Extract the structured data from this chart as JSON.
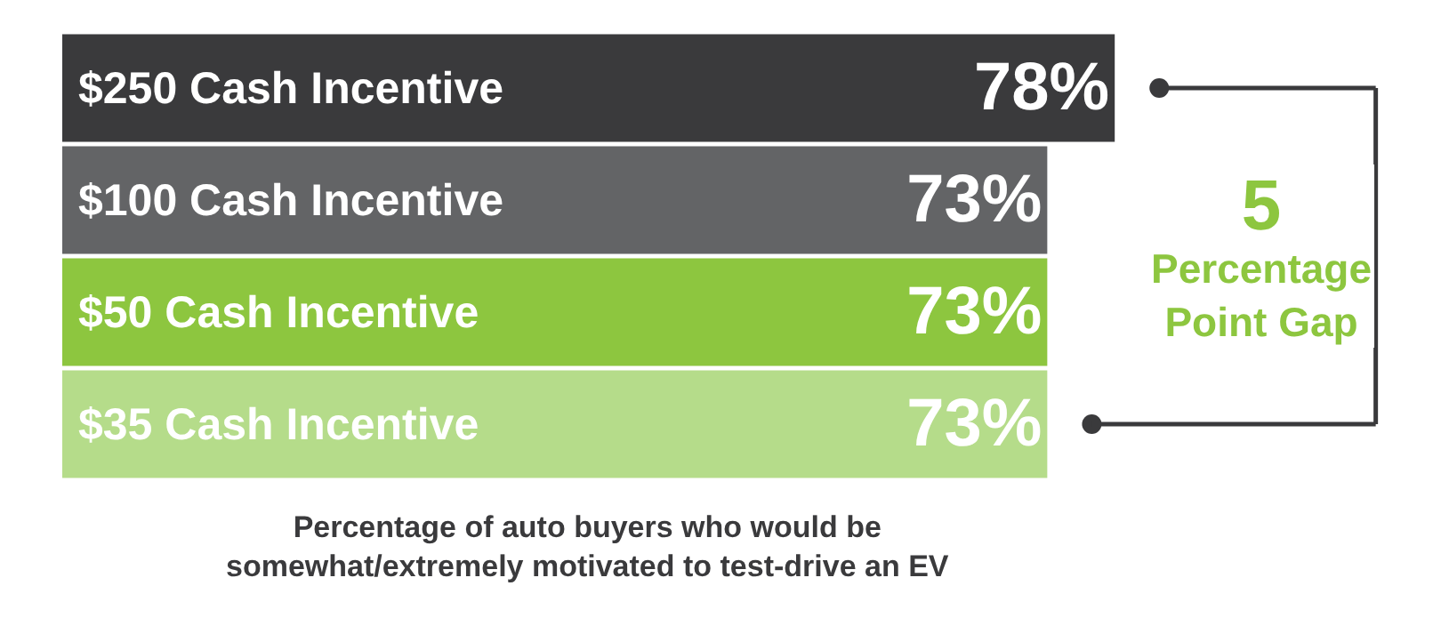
{
  "chart_data": {
    "type": "bar",
    "orientation": "horizontal",
    "categories": [
      "$250 Cash Incentive",
      "$100 Cash Incentive",
      "$50 Cash Incentive",
      "$35 Cash Incentive"
    ],
    "values": [
      78,
      73,
      73,
      73
    ],
    "value_labels": [
      "78%",
      "73%",
      "73%",
      "73%"
    ],
    "colors": [
      "#3a3a3c",
      "#636466",
      "#8dc63f",
      "#b5dc8a"
    ],
    "annotations": [
      "5\nPercentage\nPoint Gap",
      "Percentage of auto buyers who would be\nsomewhat/extremely motivated to test-drive an EV"
    ]
  }
}
